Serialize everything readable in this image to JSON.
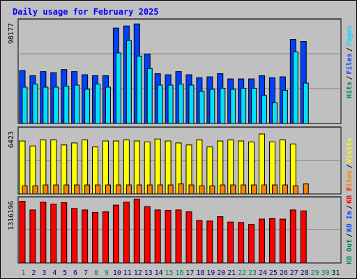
{
  "colors": {
    "background": "#c0c0c0",
    "hits": "#00805c",
    "files": "#0040ff",
    "pages": "#00e0ff",
    "visits": "#ffff00",
    "sites": "#ff8000",
    "kbytes": "#ff0000",
    "title": "#0000ff",
    "weekend_day": "#00805c",
    "weekday_day": "#000080"
  },
  "chart_data": [
    {
      "type": "bar",
      "title": "Daily usage for February 2025",
      "max_label": "98177",
      "legend": [
        {
          "name": "Pages",
          "color": "#00e0ff"
        },
        {
          "name": "Files",
          "color": "#0040ff"
        },
        {
          "name": "Hits",
          "color": "#00805c"
        }
      ],
      "separator": "/",
      "ylim": [
        0,
        98177
      ],
      "x": [
        1,
        2,
        3,
        4,
        5,
        6,
        7,
        8,
        9,
        10,
        11,
        12,
        13,
        14,
        15,
        16,
        17,
        18,
        19,
        20,
        21,
        22,
        23,
        24,
        25,
        26,
        27,
        28
      ],
      "series": [
        {
          "name": "Files",
          "values": [
            51000,
            46000,
            50000,
            49000,
            52000,
            50000,
            47000,
            46000,
            46000,
            92000,
            94000,
            96000,
            67000,
            48000,
            47000,
            50000,
            47000,
            44000,
            45000,
            48000,
            43000,
            43000,
            43000,
            46000,
            44000,
            45000,
            81000,
            79000
          ]
        },
        {
          "name": "Pages",
          "values": [
            35000,
            38000,
            35000,
            35000,
            36000,
            37000,
            33000,
            38000,
            35000,
            68000,
            80000,
            65000,
            53000,
            37000,
            37000,
            38000,
            37000,
            31000,
            33000,
            34000,
            33000,
            34000,
            34000,
            27000,
            20000,
            32000,
            69000,
            39000
          ]
        }
      ]
    },
    {
      "type": "bar",
      "max_label": "6423",
      "legend": [
        {
          "name": "Visits",
          "color": "#ffff00"
        },
        {
          "name": "Sites",
          "color": "#ff8000"
        }
      ],
      "separator": "/",
      "ylim": [
        0,
        6423
      ],
      "x": [
        1,
        2,
        3,
        4,
        5,
        6,
        7,
        8,
        9,
        10,
        11,
        12,
        13,
        14,
        15,
        16,
        17,
        18,
        19,
        20,
        21,
        22,
        23,
        24,
        25,
        26,
        27,
        28
      ],
      "series": [
        {
          "name": "Visits",
          "values": [
            5300,
            4800,
            5400,
            5400,
            4900,
            5100,
            5400,
            4700,
            5300,
            5300,
            5400,
            5300,
            5200,
            5500,
            5300,
            5100,
            4900,
            5400,
            4700,
            5300,
            5400,
            5300,
            5200,
            6000,
            5200,
            5400,
            5000,
            0
          ]
        },
        {
          "name": "Sites",
          "values": [
            800,
            800,
            900,
            900,
            900,
            900,
            900,
            900,
            900,
            900,
            900,
            900,
            900,
            900,
            900,
            1000,
            900,
            800,
            800,
            900,
            900,
            900,
            900,
            900,
            900,
            900,
            800,
            1000
          ]
        }
      ]
    },
    {
      "type": "bar",
      "max_label": "1316196",
      "legend": [
        {
          "name": "KB F",
          "color": "#ff0000"
        },
        {
          "name": "KB In",
          "color": "#0040ff"
        },
        {
          "name": "KB Out",
          "color": "#00805c"
        }
      ],
      "separator": "/",
      "ylim": [
        0,
        1316196
      ],
      "x": [
        1,
        2,
        3,
        4,
        5,
        6,
        7,
        8,
        9,
        10,
        11,
        12,
        13,
        14,
        15,
        16,
        17,
        18,
        19,
        20,
        21,
        22,
        23,
        24,
        25,
        26,
        27,
        28
      ],
      "series": [
        {
          "name": "KB F",
          "values": [
            1280000,
            1100000,
            1260000,
            1220000,
            1250000,
            1130000,
            1100000,
            1050000,
            1060000,
            1200000,
            1260000,
            1325000,
            1170000,
            1100000,
            1090000,
            1100000,
            1060000,
            880000,
            870000,
            960000,
            850000,
            840000,
            800000,
            910000,
            920000,
            910000,
            1100000,
            1080000
          ]
        }
      ]
    }
  ],
  "x_axis": {
    "days": [
      "1",
      "2",
      "3",
      "4",
      "5",
      "6",
      "7",
      "8",
      "9",
      "10",
      "11",
      "12",
      "13",
      "14",
      "15",
      "16",
      "17",
      "18",
      "19",
      "20",
      "21",
      "22",
      "23",
      "24",
      "25",
      "26",
      "27",
      "28",
      "29",
      "30",
      "31"
    ],
    "weekend_indices": [
      0,
      7,
      8,
      14,
      15,
      21,
      22,
      28,
      29
    ]
  }
}
